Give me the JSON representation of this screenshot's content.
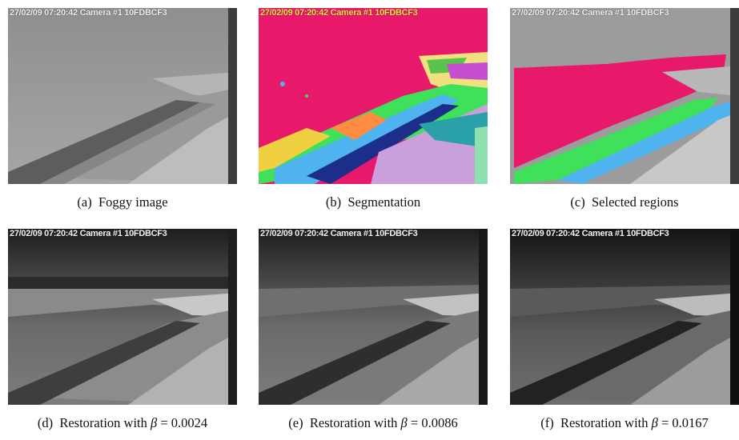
{
  "timestamp_overlay": "27/02/09 07:20:42 Camera #1 10FDBCF3",
  "panels": [
    {
      "label": "(a)",
      "caption": "Foggy image"
    },
    {
      "label": "(b)",
      "caption": "Segmentation"
    },
    {
      "label": "(c)",
      "caption": "Selected regions"
    },
    {
      "label": "(d)",
      "caption_prefix": "Restoration with",
      "symbol": "β",
      "equals": "=",
      "value": "0.0024"
    },
    {
      "label": "(e)",
      "caption_prefix": "Restoration with",
      "symbol": "β",
      "equals": "=",
      "value": "0.0086"
    },
    {
      "label": "(f)",
      "caption_prefix": "Restoration with",
      "symbol": "β",
      "equals": "=",
      "value": "0.0167"
    }
  ],
  "colors": {
    "magenta": "#e8186b",
    "cyan": "#4fb3f0",
    "green": "#3fe05a",
    "lilac": "#c9a0dc",
    "teal": "#2aa0a8"
  }
}
